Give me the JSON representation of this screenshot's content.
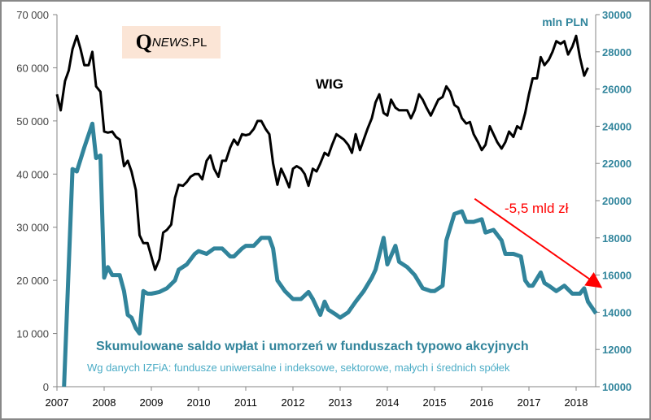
{
  "chart_data": {
    "type": "line",
    "logo": "QNEWS.PL",
    "left_axis": {
      "min": 0,
      "max": 70000,
      "ticks": [
        "0",
        "10 000",
        "20 000",
        "30 000",
        "40 000",
        "50 000",
        "60 000",
        "70 000"
      ],
      "tick_values": [
        0,
        10000,
        20000,
        30000,
        40000,
        50000,
        60000,
        70000
      ]
    },
    "right_axis": {
      "label": "mln PLN",
      "min": 10000,
      "max": 30000,
      "ticks": [
        "10000",
        "12000",
        "14000",
        "16000",
        "18000",
        "20000",
        "22000",
        "24000",
        "26000",
        "28000",
        "30000"
      ],
      "tick_values": [
        10000,
        12000,
        14000,
        16000,
        18000,
        20000,
        22000,
        24000,
        26000,
        28000,
        30000
      ]
    },
    "x_axis": {
      "min": 2007,
      "max": 2018.4,
      "ticks": [
        "2007",
        "2008",
        "2009",
        "2010",
        "2011",
        "2012",
        "2013",
        "2014",
        "2015",
        "2016",
        "2017",
        "2018"
      ],
      "tick_values": [
        2007,
        2008,
        2009,
        2010,
        2011,
        2012,
        2013,
        2014,
        2015,
        2016,
        2017,
        2018
      ]
    },
    "title": "Skumulowane saldo wpłat i umorzeń w funduszach  typowo akcyjnych",
    "subtitle": "Wg danych IZFiA: fundusze uniwersalne i indeksowe, sektorowe, małych i średnich spółek",
    "colors": {
      "wig": "#000000",
      "funds": "#31849b",
      "arrow": "#ff0000"
    },
    "series": [
      {
        "name": "WIG",
        "axis": "left",
        "x": [
          2007.0,
          2007.08,
          2007.17,
          2007.25,
          2007.33,
          2007.42,
          2007.5,
          2007.58,
          2007.67,
          2007.75,
          2007.83,
          2007.92,
          2008.0,
          2008.08,
          2008.17,
          2008.25,
          2008.33,
          2008.42,
          2008.5,
          2008.58,
          2008.67,
          2008.75,
          2008.83,
          2008.92,
          2009.0,
          2009.08,
          2009.17,
          2009.25,
          2009.33,
          2009.42,
          2009.5,
          2009.58,
          2009.67,
          2009.75,
          2009.83,
          2009.92,
          2010.0,
          2010.08,
          2010.17,
          2010.25,
          2010.33,
          2010.42,
          2010.5,
          2010.58,
          2010.67,
          2010.75,
          2010.83,
          2010.92,
          2011.0,
          2011.08,
          2011.17,
          2011.25,
          2011.33,
          2011.42,
          2011.5,
          2011.58,
          2011.67,
          2011.75,
          2011.83,
          2011.92,
          2012.0,
          2012.08,
          2012.17,
          2012.25,
          2012.33,
          2012.42,
          2012.5,
          2012.58,
          2012.67,
          2012.75,
          2012.83,
          2012.92,
          2013.0,
          2013.08,
          2013.17,
          2013.25,
          2013.33,
          2013.42,
          2013.5,
          2013.58,
          2013.67,
          2013.75,
          2013.83,
          2013.92,
          2014.0,
          2014.08,
          2014.17,
          2014.25,
          2014.33,
          2014.42,
          2014.5,
          2014.58,
          2014.67,
          2014.75,
          2014.83,
          2014.92,
          2015.0,
          2015.08,
          2015.17,
          2015.25,
          2015.33,
          2015.42,
          2015.5,
          2015.58,
          2015.67,
          2015.75,
          2015.83,
          2015.92,
          2016.0,
          2016.08,
          2016.17,
          2016.25,
          2016.33,
          2016.42,
          2016.5,
          2016.58,
          2016.67,
          2016.75,
          2016.83,
          2016.92,
          2017.0,
          2017.08,
          2017.17,
          2017.25,
          2017.33,
          2017.42,
          2017.5,
          2017.58,
          2017.67,
          2017.75,
          2017.83,
          2017.92,
          2018.0,
          2018.08,
          2018.17,
          2018.25
        ],
        "values": [
          55000,
          52000,
          57500,
          59500,
          63500,
          66000,
          63500,
          60500,
          60500,
          63000,
          56500,
          55500,
          48000,
          47800,
          48000,
          47000,
          46500,
          41500,
          42500,
          40500,
          37000,
          28500,
          27000,
          27000,
          24500,
          22000,
          24000,
          29000,
          29500,
          30500,
          35500,
          38000,
          37800,
          38500,
          39500,
          40000,
          40000,
          39000,
          42500,
          43500,
          41000,
          39500,
          42500,
          42500,
          45000,
          46500,
          45500,
          47500,
          47300,
          47500,
          48500,
          50000,
          50000,
          48500,
          47500,
          42000,
          38000,
          41000,
          39500,
          37500,
          41000,
          41500,
          41000,
          40000,
          37800,
          41000,
          40500,
          42000,
          44000,
          43500,
          45500,
          47500,
          47000,
          46500,
          45500,
          44000,
          47500,
          44500,
          46500,
          48500,
          50500,
          53500,
          55000,
          51500,
          51000,
          54000,
          52500,
          52000,
          52000,
          52000,
          50500,
          52000,
          55000,
          54000,
          52500,
          51000,
          52500,
          54000,
          54500,
          56500,
          55500,
          53000,
          52500,
          50500,
          49500,
          49800,
          47500,
          46000,
          44500,
          45500,
          49000,
          47500,
          46000,
          44800,
          46000,
          48000,
          47000,
          49000,
          48500,
          51500,
          55000,
          58000,
          58000,
          62000,
          60500,
          61500,
          63000,
          65000,
          64500,
          65000,
          62500,
          64000,
          66000,
          62000,
          58500,
          60000
        ]
      },
      {
        "name": "Skumulowane saldo (mln PLN)",
        "axis": "right",
        "x": [
          2007.15,
          2007.33,
          2007.42,
          2007.58,
          2007.75,
          2007.83,
          2007.92,
          2008.0,
          2008.08,
          2008.17,
          2008.33,
          2008.42,
          2008.5,
          2008.58,
          2008.67,
          2008.75,
          2008.83,
          2008.92,
          2009.0,
          2009.17,
          2009.33,
          2009.5,
          2009.58,
          2009.75,
          2009.92,
          2010.0,
          2010.17,
          2010.33,
          2010.5,
          2010.67,
          2010.75,
          2010.92,
          2011.0,
          2011.17,
          2011.33,
          2011.5,
          2011.58,
          2011.67,
          2011.83,
          2012.0,
          2012.17,
          2012.33,
          2012.42,
          2012.58,
          2012.67,
          2012.75,
          2012.92,
          2013.0,
          2013.17,
          2013.33,
          2013.5,
          2013.67,
          2013.75,
          2013.92,
          2014.0,
          2014.17,
          2014.25,
          2014.42,
          2014.58,
          2014.75,
          2014.92,
          2015.0,
          2015.17,
          2015.25,
          2015.42,
          2015.58,
          2015.67,
          2015.83,
          2016.0,
          2016.08,
          2016.25,
          2016.42,
          2016.5,
          2016.67,
          2016.83,
          2016.92,
          2017.0,
          2017.08,
          2017.25,
          2017.33,
          2017.42,
          2017.58,
          2017.75,
          2017.92,
          2018.0,
          2018.08,
          2018.17,
          2018.25,
          2018.42
        ],
        "values": [
          10000,
          21700,
          21570,
          22860,
          24140,
          22290,
          22430,
          15860,
          16430,
          16000,
          16000,
          15140,
          13860,
          13710,
          13140,
          12860,
          15140,
          15000,
          15000,
          15090,
          15290,
          15710,
          16290,
          16570,
          17140,
          17290,
          17140,
          17430,
          17430,
          17000,
          17000,
          17430,
          17570,
          17570,
          18000,
          18000,
          17430,
          15710,
          15140,
          14710,
          14710,
          15090,
          14710,
          13860,
          14570,
          14140,
          13860,
          13710,
          14000,
          14570,
          15140,
          15860,
          16290,
          18000,
          16570,
          17570,
          16710,
          16430,
          16000,
          15290,
          15140,
          15140,
          15430,
          17860,
          19290,
          19430,
          18860,
          18860,
          19000,
          18290,
          18430,
          17860,
          17140,
          17140,
          17000,
          15710,
          15430,
          15430,
          16140,
          15570,
          15430,
          15140,
          15430,
          15000,
          15000,
          15000,
          15290,
          14570,
          13940
        ]
      }
    ],
    "annotations": [
      {
        "text": "WIG",
        "x": 2012.3,
        "y_left": 57000
      },
      {
        "text": "-5,5 mld zł",
        "x": 2016.4,
        "y_right": 19300,
        "arrow": {
          "from": [
            2015.85,
            20100
          ],
          "to": [
            2018.5,
            15400
          ]
        }
      }
    ]
  }
}
